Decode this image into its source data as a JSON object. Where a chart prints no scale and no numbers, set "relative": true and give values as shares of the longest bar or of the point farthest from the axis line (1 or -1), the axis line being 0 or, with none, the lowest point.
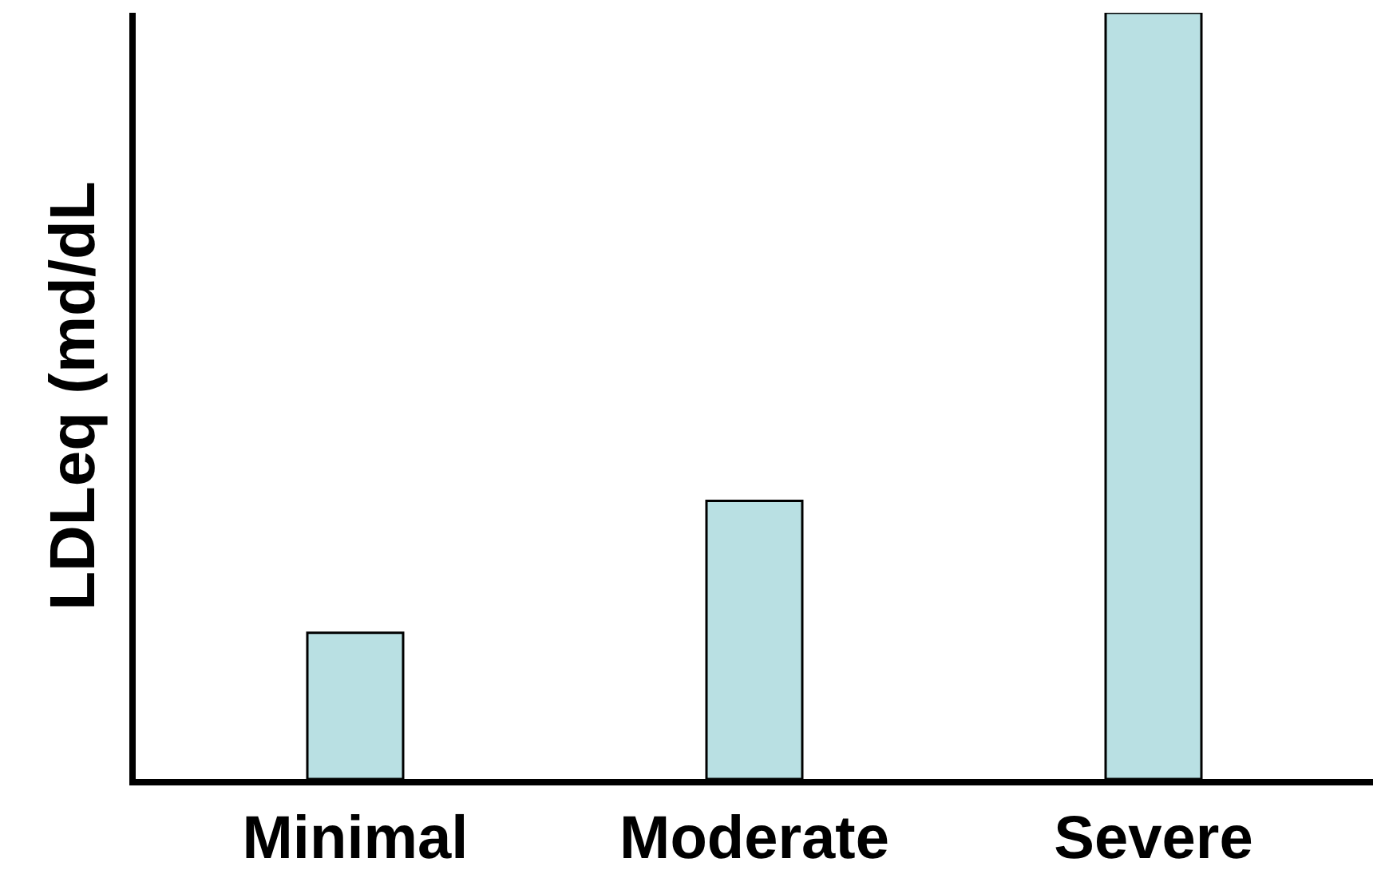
{
  "chart_data": {
    "type": "bar",
    "ylabel": "LDLeq (md/dL",
    "categories": [
      "Minimal",
      "Moderate",
      "Severe"
    ],
    "values": [
      0.191,
      0.363,
      1
    ],
    "color": "#b9e0e3",
    "relative": true
  }
}
